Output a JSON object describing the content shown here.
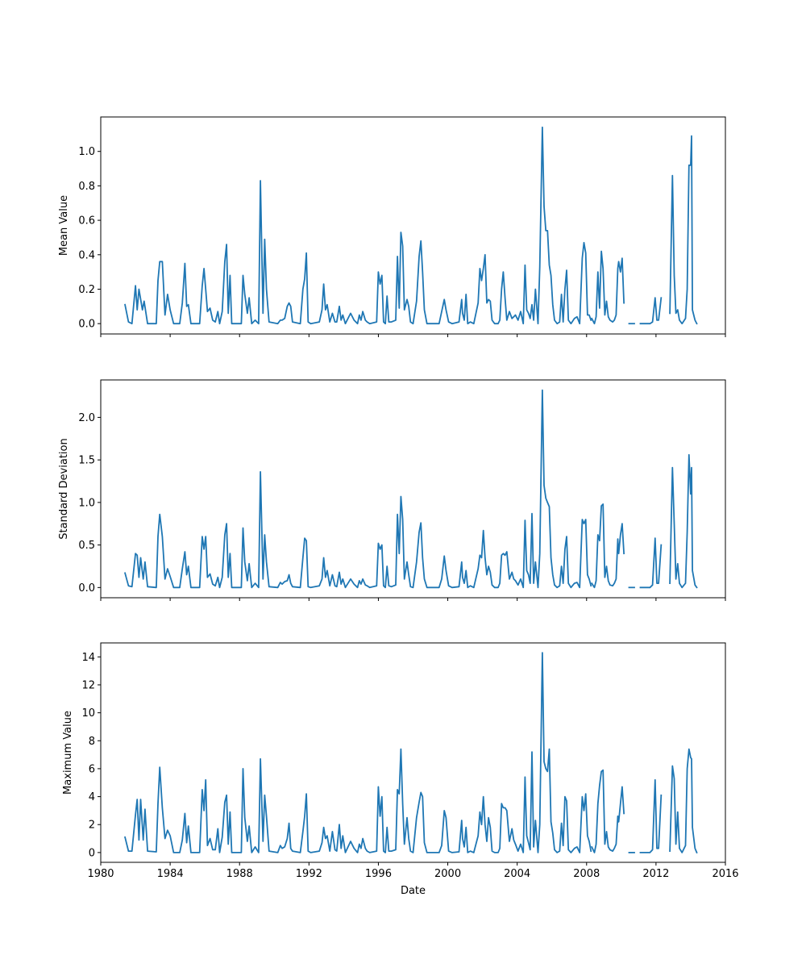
{
  "chart_data": [
    {
      "type": "line",
      "ylabel": "Mean Value",
      "xlabel": "",
      "xlim": [
        1980,
        2016
      ],
      "ylim": [
        -0.06,
        1.2
      ],
      "xticks": [
        1980,
        1984,
        1988,
        1992,
        1996,
        2000,
        2004,
        2008,
        2012,
        2016
      ],
      "xtick_labels_visible": false,
      "yticks": [
        0.0,
        0.2,
        0.4,
        0.6,
        0.8,
        1.0
      ],
      "ytick_labels": [
        "0.0",
        "0.2",
        "0.4",
        "0.6",
        "0.8",
        "1.0"
      ],
      "color": "#1f77b4",
      "grid": false,
      "series": [
        {
          "segments": [
            [
              [
                1981.4,
                0.11
              ],
              [
                1981.6,
                0.01
              ],
              [
                1981.8,
                0.0
              ],
              [
                1982.0,
                0.22
              ],
              [
                1982.1,
                0.08
              ],
              [
                1982.2,
                0.2
              ],
              [
                1982.4,
                0.08
              ],
              [
                1982.5,
                0.13
              ],
              [
                1982.7,
                0.0
              ],
              [
                1983.2,
                0.0
              ],
              [
                1983.3,
                0.25
              ],
              [
                1983.4,
                0.36
              ],
              [
                1983.55,
                0.36
              ],
              [
                1983.7,
                0.05
              ],
              [
                1983.85,
                0.17
              ],
              [
                1984.0,
                0.08
              ],
              [
                1984.2,
                0.0
              ],
              [
                1984.55,
                0.0
              ],
              [
                1984.7,
                0.12
              ],
              [
                1984.85,
                0.35
              ],
              [
                1984.95,
                0.1
              ],
              [
                1985.05,
                0.11
              ],
              [
                1985.2,
                0.0
              ],
              [
                1985.7,
                0.0
              ],
              [
                1985.85,
                0.22
              ],
              [
                1985.95,
                0.32
              ],
              [
                1986.05,
                0.2
              ],
              [
                1986.15,
                0.07
              ],
              [
                1986.3,
                0.09
              ],
              [
                1986.45,
                0.02
              ],
              [
                1986.6,
                0.01
              ],
              [
                1986.75,
                0.07
              ],
              [
                1986.85,
                0.0
              ],
              [
                1987.0,
                0.07
              ],
              [
                1987.15,
                0.36
              ],
              [
                1987.25,
                0.46
              ],
              [
                1987.35,
                0.06
              ],
              [
                1987.45,
                0.28
              ],
              [
                1987.55,
                0.0
              ],
              [
                1988.1,
                0.0
              ],
              [
                1988.2,
                0.28
              ],
              [
                1988.3,
                0.17
              ],
              [
                1988.45,
                0.06
              ],
              [
                1988.55,
                0.15
              ],
              [
                1988.7,
                0.0
              ],
              [
                1988.9,
                0.02
              ],
              [
                1989.1,
                0.0
              ],
              [
                1989.2,
                0.83
              ],
              [
                1989.35,
                0.06
              ],
              [
                1989.45,
                0.49
              ],
              [
                1989.55,
                0.2
              ],
              [
                1989.7,
                0.01
              ],
              [
                1990.2,
                0.0
              ],
              [
                1990.35,
                0.02
              ],
              [
                1990.45,
                0.02
              ],
              [
                1990.6,
                0.03
              ],
              [
                1990.75,
                0.1
              ],
              [
                1990.85,
                0.12
              ],
              [
                1990.95,
                0.1
              ],
              [
                1991.05,
                0.01
              ],
              [
                1991.5,
                0.0
              ],
              [
                1991.65,
                0.2
              ],
              [
                1991.75,
                0.26
              ],
              [
                1991.85,
                0.41
              ],
              [
                1991.95,
                0.01
              ],
              [
                1992.1,
                0.0
              ],
              [
                1992.6,
                0.01
              ],
              [
                1992.75,
                0.08
              ],
              [
                1992.85,
                0.23
              ],
              [
                1992.95,
                0.08
              ],
              [
                1993.05,
                0.11
              ],
              [
                1993.2,
                0.01
              ],
              [
                1993.35,
                0.06
              ],
              [
                1993.5,
                0.01
              ],
              [
                1993.6,
                0.01
              ],
              [
                1993.75,
                0.1
              ],
              [
                1993.85,
                0.02
              ],
              [
                1993.95,
                0.05
              ],
              [
                1994.1,
                0.0
              ],
              [
                1994.4,
                0.06
              ],
              [
                1994.6,
                0.02
              ],
              [
                1994.8,
                0.0
              ],
              [
                1994.9,
                0.05
              ],
              [
                1995.0,
                0.02
              ],
              [
                1995.1,
                0.07
              ],
              [
                1995.25,
                0.02
              ],
              [
                1995.35,
                0.01
              ],
              [
                1995.5,
                0.0
              ],
              [
                1995.9,
                0.01
              ],
              [
                1996.0,
                0.3
              ],
              [
                1996.1,
                0.23
              ],
              [
                1996.2,
                0.28
              ],
              [
                1996.3,
                0.01
              ],
              [
                1996.4,
                0.0
              ],
              [
                1996.5,
                0.16
              ],
              [
                1996.6,
                0.01
              ],
              [
                1996.75,
                0.01
              ],
              [
                1997.0,
                0.02
              ],
              [
                1997.1,
                0.39
              ],
              [
                1997.2,
                0.09
              ],
              [
                1997.3,
                0.53
              ],
              [
                1997.4,
                0.45
              ],
              [
                1997.5,
                0.08
              ],
              [
                1997.65,
                0.14
              ],
              [
                1997.75,
                0.1
              ],
              [
                1997.85,
                0.01
              ],
              [
                1998.0,
                0.0
              ],
              [
                1998.2,
                0.13
              ],
              [
                1998.35,
                0.39
              ],
              [
                1998.45,
                0.48
              ],
              [
                1998.55,
                0.3
              ],
              [
                1998.65,
                0.08
              ],
              [
                1998.8,
                0.0
              ],
              [
                1999.5,
                0.0
              ],
              [
                1999.65,
                0.07
              ],
              [
                1999.8,
                0.14
              ],
              [
                1999.9,
                0.08
              ],
              [
                2000.05,
                0.01
              ],
              [
                2000.25,
                0.0
              ],
              [
                2000.65,
                0.01
              ],
              [
                2000.8,
                0.14
              ],
              [
                2000.85,
                0.06
              ],
              [
                2000.95,
                0.02
              ],
              [
                2001.05,
                0.17
              ],
              [
                2001.15,
                0.0
              ],
              [
                2001.3,
                0.01
              ],
              [
                2001.5,
                0.0
              ],
              [
                2001.75,
                0.12
              ],
              [
                2001.85,
                0.32
              ],
              [
                2001.95,
                0.25
              ],
              [
                2002.05,
                0.32
              ],
              [
                2002.15,
                0.4
              ],
              [
                2002.25,
                0.12
              ],
              [
                2002.35,
                0.14
              ],
              [
                2002.45,
                0.13
              ],
              [
                2002.55,
                0.02
              ],
              [
                2002.7,
                0.0
              ],
              [
                2002.9,
                0.0
              ],
              [
                2003.0,
                0.02
              ],
              [
                2003.1,
                0.2
              ],
              [
                2003.2,
                0.3
              ],
              [
                2003.3,
                0.15
              ],
              [
                2003.4,
                0.02
              ],
              [
                2003.55,
                0.07
              ],
              [
                2003.7,
                0.03
              ],
              [
                2003.8,
                0.04
              ],
              [
                2003.9,
                0.05
              ],
              [
                2004.05,
                0.02
              ],
              [
                2004.2,
                0.07
              ],
              [
                2004.35,
                0.0
              ],
              [
                2004.45,
                0.34
              ],
              [
                2004.55,
                0.08
              ],
              [
                2004.65,
                0.06
              ],
              [
                2004.75,
                0.03
              ],
              [
                2004.85,
                0.11
              ],
              [
                2004.95,
                0.02
              ],
              [
                2005.05,
                0.2
              ],
              [
                2005.2,
                0.0
              ],
              [
                2005.3,
                0.33
              ],
              [
                2005.45,
                1.14
              ],
              [
                2005.55,
                0.68
              ],
              [
                2005.65,
                0.54
              ],
              [
                2005.75,
                0.54
              ],
              [
                2005.85,
                0.34
              ],
              [
                2005.95,
                0.28
              ],
              [
                2006.05,
                0.11
              ],
              [
                2006.15,
                0.02
              ],
              [
                2006.3,
                0.0
              ],
              [
                2006.45,
                0.01
              ],
              [
                2006.55,
                0.17
              ],
              [
                2006.65,
                0.01
              ],
              [
                2006.75,
                0.2
              ],
              [
                2006.85,
                0.31
              ],
              [
                2006.95,
                0.02
              ],
              [
                2007.1,
                0.0
              ],
              [
                2007.3,
                0.03
              ],
              [
                2007.45,
                0.04
              ],
              [
                2007.6,
                0.0
              ],
              [
                2007.75,
                0.38
              ],
              [
                2007.85,
                0.47
              ],
              [
                2007.95,
                0.41
              ],
              [
                2008.05,
                0.05
              ],
              [
                2008.15,
                0.05
              ],
              [
                2008.25,
                0.02
              ]
            ]
          ]
        }
      ]
    },
    {
      "type": "line",
      "ylabel": "Standard Deviation",
      "xlabel": "",
      "xlim": [
        1980,
        2016
      ],
      "ylim": [
        -0.12,
        2.44
      ],
      "xticks": [
        1980,
        1984,
        1988,
        1992,
        1996,
        2000,
        2004,
        2008,
        2012,
        2016
      ],
      "xtick_labels_visible": false,
      "yticks": [
        0.0,
        0.5,
        1.0,
        1.5,
        2.0
      ],
      "ytick_labels": [
        "0.0",
        "0.5",
        "1.0",
        "1.5",
        "2.0"
      ],
      "color": "#1f77b4",
      "grid": false,
      "series": [
        {
          "segments": []
        }
      ]
    },
    {
      "type": "line",
      "ylabel": "Maximum Value",
      "xlabel": "Date",
      "xlim": [
        1980,
        2016
      ],
      "ylim": [
        -0.7,
        15.0
      ],
      "xticks": [
        1980,
        1984,
        1988,
        1992,
        1996,
        2000,
        2004,
        2008,
        2012,
        2016
      ],
      "xtick_labels": [
        "1980",
        "1984",
        "1988",
        "1992",
        "1996",
        "2000",
        "2004",
        "2008",
        "2012",
        "2016"
      ],
      "xtick_labels_visible": true,
      "yticks": [
        0,
        2,
        4,
        6,
        8,
        10,
        12,
        14
      ],
      "ytick_labels": [
        "0",
        "2",
        "4",
        "6",
        "8",
        "10",
        "12",
        "14"
      ],
      "color": "#1f77b4",
      "grid": false,
      "series": [
        {
          "segments": []
        }
      ]
    }
  ]
}
